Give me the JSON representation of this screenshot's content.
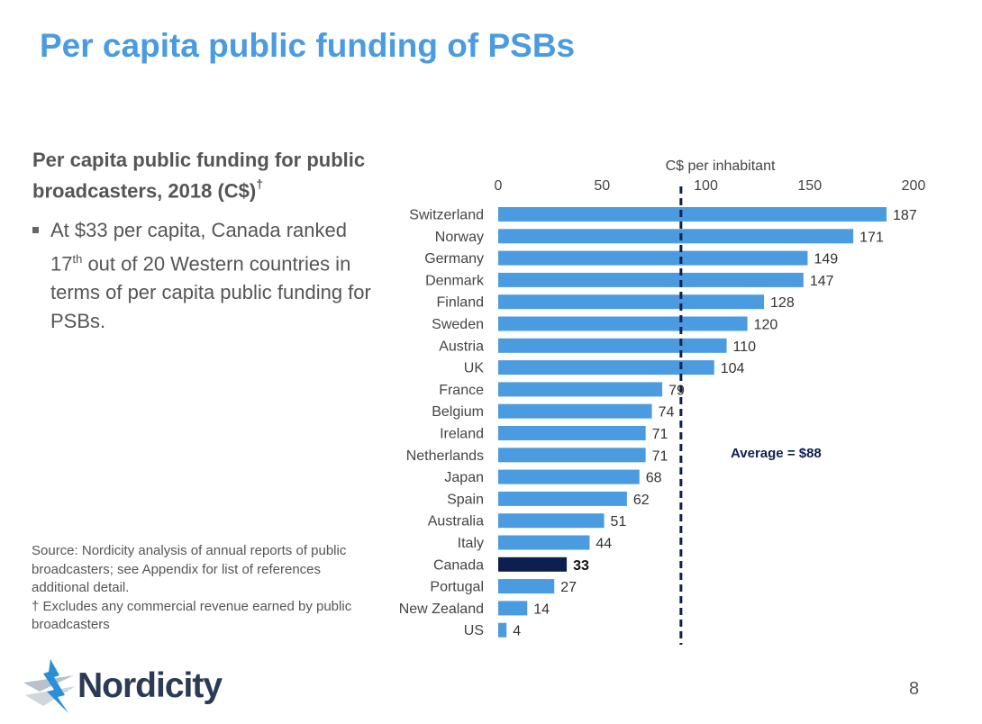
{
  "slide": {
    "title": "Per capita public funding of PSBs",
    "subtitle_main": "Per capita public funding for public broadcasters, 2018 (C$)",
    "subtitle_mark": "†",
    "bullet_part1": "At $33 per capita, Canada ranked 17",
    "bullet_sup": "th",
    "bullet_part2": " out of 20 Western countries in terms of per capita public funding for PSBs.",
    "source_line1": "Source: Nordicity analysis of annual reports of public broadcasters; see Appendix for list of references additional detail.",
    "source_line2": "† Excludes any commercial revenue earned by public broadcasters",
    "logo_text": "Nordicity",
    "page_number": "8"
  },
  "chart_data": {
    "type": "bar",
    "orientation": "horizontal",
    "axis_title": "C$ per inhabitant",
    "xlim": [
      0,
      200
    ],
    "ticks": [
      "0",
      "50",
      "100",
      "150",
      "200"
    ],
    "tick_values": [
      0,
      50,
      100,
      150,
      200
    ],
    "tick_position": "top",
    "categories": [
      "Switzerland",
      "Norway",
      "Germany",
      "Denmark",
      "Finland",
      "Sweden",
      "Austria",
      "UK",
      "France",
      "Belgium",
      "Ireland",
      "Netherlands",
      "Japan",
      "Spain",
      "Australia",
      "Italy",
      "Canada",
      "Portugal",
      "New Zealand",
      "US"
    ],
    "values": [
      187,
      171,
      149,
      147,
      128,
      120,
      110,
      104,
      79,
      74,
      71,
      71,
      68,
      62,
      51,
      44,
      33,
      27,
      14,
      4
    ],
    "highlight_category": "Canada",
    "average_value": 88,
    "average_label": "Average = $88",
    "colors": {
      "bar": "#4a9be0",
      "highlight": "#0d1f4e",
      "average_line": "#0d1f4e",
      "label": "#333333",
      "highlight_label": "#111111"
    }
  }
}
